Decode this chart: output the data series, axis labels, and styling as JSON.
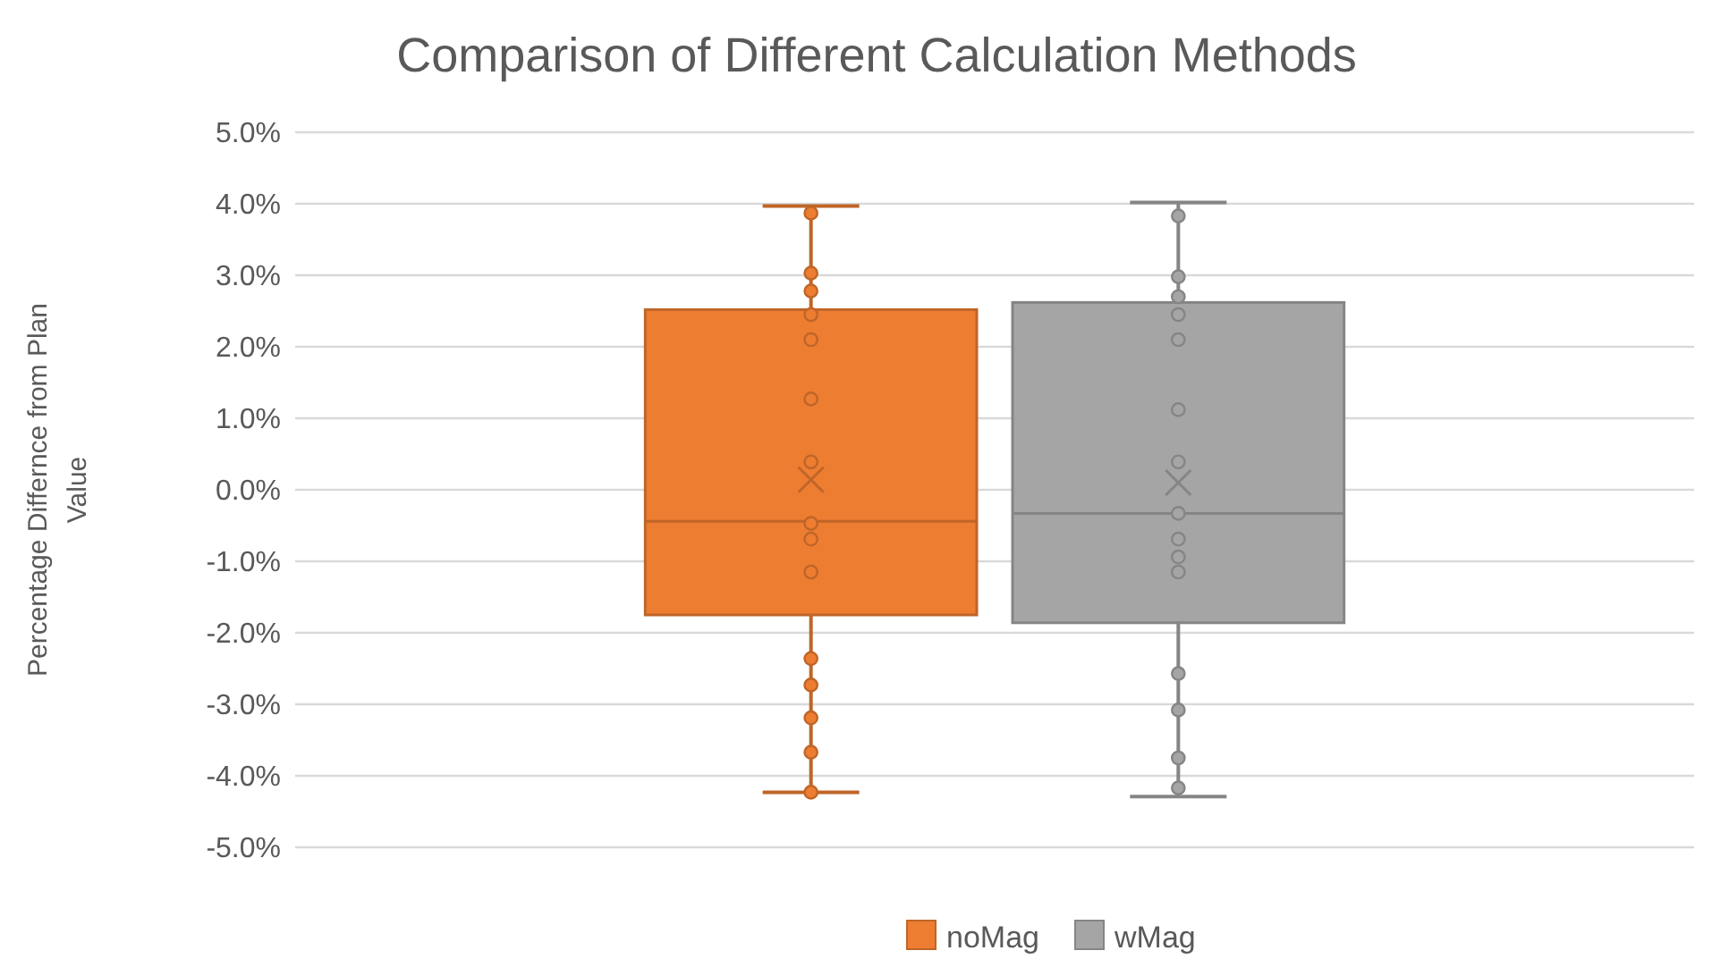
{
  "chart_data": {
    "type": "box",
    "title": "Comparison of Different Calculation Methods",
    "ylabel": "Percentage Differnce from Plan Value",
    "categories": [
      null
    ],
    "ylim": [
      -5,
      5
    ],
    "yticks": [
      {
        "value": -5,
        "label": "-5.0%"
      },
      {
        "value": -4,
        "label": "-4.0%"
      },
      {
        "value": -3,
        "label": "-3.0%"
      },
      {
        "value": -2,
        "label": "-2.0%"
      },
      {
        "value": -1,
        "label": "-1.0%"
      },
      {
        "value": 0,
        "label": "0.0%"
      },
      {
        "value": 1,
        "label": "1.0%"
      },
      {
        "value": 2,
        "label": "2.0%"
      },
      {
        "value": 3,
        "label": "3.0%"
      },
      {
        "value": 4,
        "label": "4.0%"
      },
      {
        "value": 5,
        "label": "5.0%"
      }
    ],
    "grid": "y",
    "legend": "bottom",
    "marker": "circle",
    "series": [
      {
        "name": "noMag",
        "color": "#ed7d31",
        "boxes": [
          {
            "low": -4.23,
            "q1": -1.75,
            "median": -0.44,
            "q3": 2.52,
            "high": 3.97,
            "mean": 0.14
          }
        ]
      },
      {
        "name": "wMag",
        "color": "#a5a5a5",
        "boxes": [
          {
            "low": -4.29,
            "q1": -1.86,
            "median": -0.33,
            "q3": 2.62,
            "high": 4.02,
            "mean": 0.1
          }
        ]
      },
      {
        "type": "scatter",
        "color": "#ed7d31",
        "x": [
          null,
          null,
          null,
          null,
          null,
          null,
          null,
          null,
          null,
          null,
          null,
          null,
          null,
          null,
          null
        ],
        "values": [
          3.87,
          3.03,
          2.78,
          2.45,
          2.1,
          1.27,
          0.39,
          -0.47,
          -0.69,
          -1.15,
          -2.36,
          -2.73,
          -3.19,
          -3.67,
          -4.23
        ]
      },
      {
        "type": "scatter",
        "color": "#a5a5a5",
        "x": [
          null,
          null,
          null,
          null,
          null,
          null,
          null,
          null,
          null,
          null,
          null,
          null,
          null,
          null,
          null
        ],
        "values": [
          3.83,
          2.98,
          2.7,
          2.45,
          2.1,
          1.12,
          0.39,
          -0.33,
          -0.69,
          -0.94,
          -1.15,
          -2.57,
          -3.08,
          -3.75,
          -4.17
        ]
      }
    ]
  }
}
